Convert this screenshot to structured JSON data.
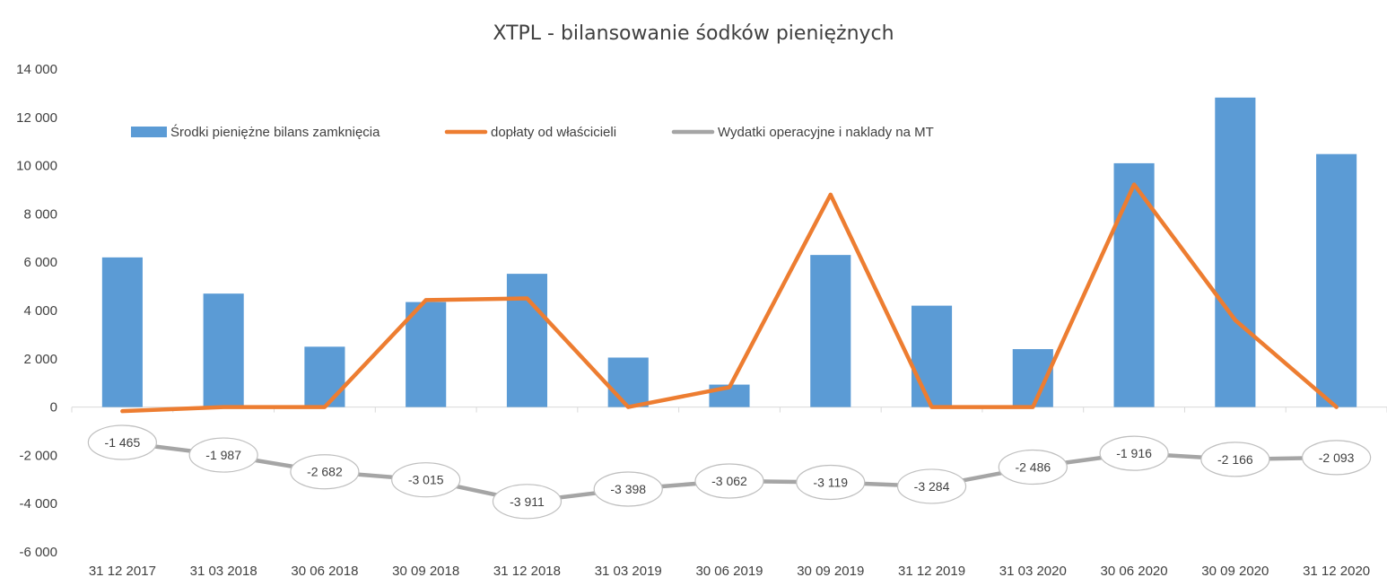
{
  "colors": {
    "bar": "#5B9BD5",
    "owner_line": "#ED7D31",
    "expense_line": "#A5A5A5",
    "text": "#404040",
    "axis": "#D9D9D9"
  },
  "chart_data": {
    "type": "bar",
    "title": "XTPL - bilansowanie śodków pieniężnych",
    "xlabel": "",
    "ylabel": "",
    "ylim": [
      -6000,
      14000
    ],
    "y_ticks": [
      14000,
      12000,
      10000,
      8000,
      6000,
      4000,
      2000,
      0,
      -2000,
      -4000,
      -6000
    ],
    "y_tick_labels": [
      "14 000",
      "12 000",
      "10 000",
      "8 000",
      "6 000",
      "4 000",
      "2 000",
      "0",
      "-2 000",
      "-4 000",
      "-6 000"
    ],
    "grid": false,
    "legend_position": "top-left",
    "categories": [
      "31 12 2017",
      "31 03 2018",
      "30 06 2018",
      "30 09 2018",
      "31 12 2018",
      "31 03 2019",
      "30 06 2019",
      "30 09 2019",
      "31 12 2019",
      "31 03 2020",
      "30 06 2020",
      "30 09 2020",
      "31 12 2020"
    ],
    "series": [
      {
        "name": "Środki pieniężne bilans zamknięcia",
        "type": "bar",
        "values": [
          6200,
          4700,
          2500,
          4350,
          5520,
          2050,
          930,
          6300,
          4200,
          2400,
          10100,
          12820,
          10480
        ]
      },
      {
        "name": "dopłaty od właścicieli",
        "type": "line",
        "values": [
          -170,
          0,
          0,
          4430,
          4500,
          0,
          820,
          8800,
          0,
          0,
          9220,
          3600,
          0
        ]
      },
      {
        "name": "Wydatki operacyjne i naklady na MT",
        "type": "line",
        "values": [
          -1465,
          -1987,
          -2682,
          -3015,
          -3911,
          -3398,
          -3062,
          -3119,
          -3284,
          -2486,
          -1916,
          -2166,
          -2093
        ],
        "data_labels": [
          "-1 465",
          "-1 987",
          "-2 682",
          "-3 015",
          "-3 911",
          "-3 398",
          "-3 062",
          "-3 119",
          "-3 284",
          "-2 486",
          "-1 916",
          "-2 166",
          "-2 093"
        ]
      }
    ]
  }
}
